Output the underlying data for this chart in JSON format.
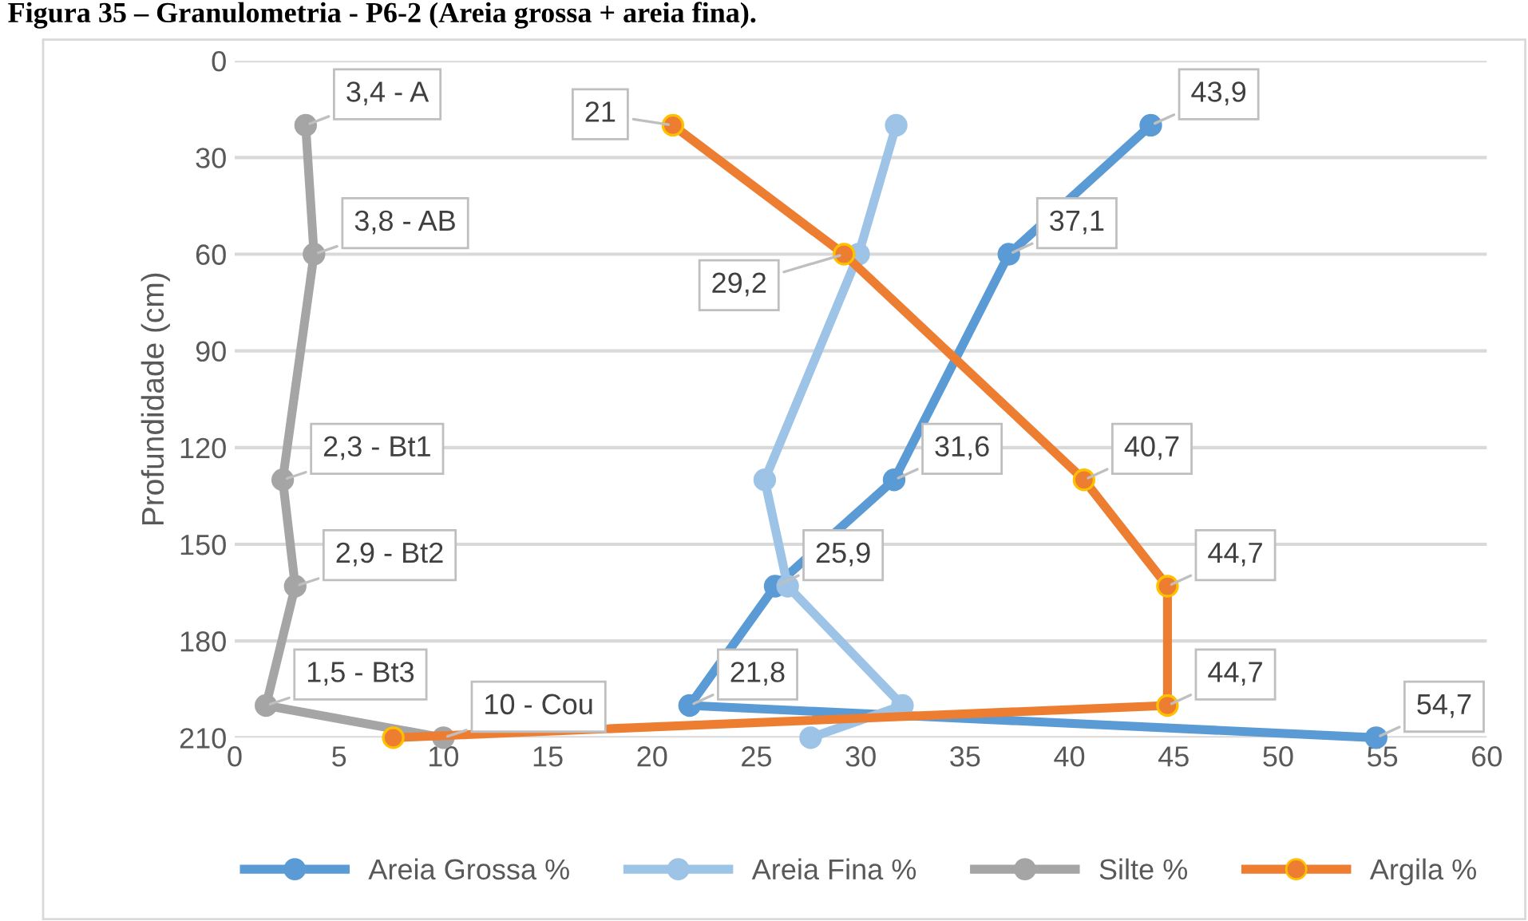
{
  "chart_data": {
    "type": "line",
    "orientation": "horizontal",
    "title": "Figura 35 – Granulometria - P6-2 (Areia grossa + areia fina).",
    "ylabel": "Profundidade (cm)",
    "xlim": [
      0,
      60
    ],
    "xticks": [
      0,
      5,
      10,
      15,
      20,
      25,
      30,
      35,
      40,
      45,
      50,
      55,
      60
    ],
    "ylim": [
      210,
      0
    ],
    "yticks": [
      0,
      30,
      60,
      90,
      120,
      150,
      180,
      210
    ],
    "grid": "y",
    "legend": "bottom",
    "marker": "circle",
    "line_style": "solid",
    "series": [
      {
        "name": "Areia Grossa %",
        "color": "#5b9bd5",
        "x": [
          20,
          60,
          130,
          163,
          200,
          210
        ],
        "values": [
          43.9,
          37.1,
          31.6,
          25.9,
          21.8,
          54.7
        ],
        "value_labels": [
          "43,9",
          "37,1",
          "31,6",
          "25,9",
          "21,8",
          "54,7"
        ]
      },
      {
        "name": "Areia Fina %",
        "color": "#9dc3e6",
        "x": [
          20,
          60,
          130,
          163,
          200,
          210
        ],
        "values": [
          31.7,
          29.9,
          25.4,
          26.5,
          32.0,
          27.6
        ]
      },
      {
        "name": "Silte %",
        "color": "#a5a5a5",
        "x": [
          20,
          60,
          130,
          163,
          200,
          210
        ],
        "values": [
          3.4,
          3.8,
          2.3,
          2.9,
          1.5,
          10
        ],
        "value_labels": [
          "3,4 - A",
          "3,8 - AB",
          "2,3 - Bt1",
          "2,9 - Bt2",
          "1,5 - Bt3",
          "10 - Cou"
        ]
      },
      {
        "name": "Argila %",
        "color": "#ed7d31",
        "x": [
          20,
          60,
          130,
          163,
          200,
          210
        ],
        "values": [
          21,
          29.2,
          40.7,
          44.7,
          44.7,
          7.6
        ],
        "value_labels": [
          "21",
          "29,2",
          "40,7",
          "44,7",
          "44,7",
          null
        ]
      }
    ]
  }
}
